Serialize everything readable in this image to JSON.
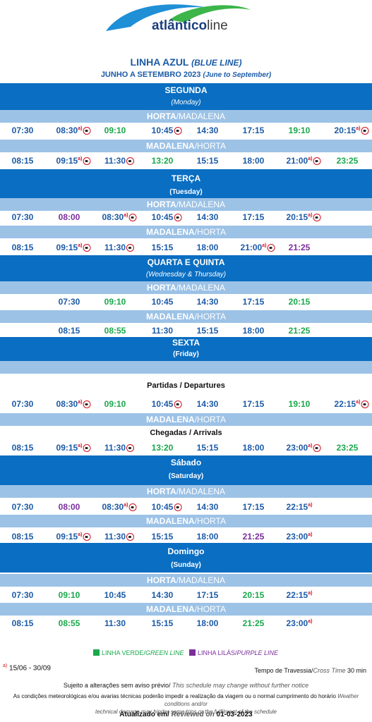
{
  "brand": {
    "name_bold": "atlântico",
    "name_light": "line"
  },
  "header": {
    "line_name": "LINHA AZUL",
    "line_name_en": "(BLUE LINE)",
    "period": "JUNHO A SETEMBRO 2023",
    "period_en": "(June to September)"
  },
  "routes": {
    "hm_a": "HORTA",
    "hm_b": "/MADALENA",
    "mh_a": "MADALENA",
    "mh_b": "/HORTA"
  },
  "days": {
    "monday": {
      "main": "SEGUNDA",
      "sub": "(Monday)"
    },
    "tuesday": {
      "main": "TERÇA",
      "sub": "(Tuesday)"
    },
    "wedthu": {
      "main": "QUARTA E QUINTA",
      "sub": "(Wednesday & Thursday)"
    },
    "friday": {
      "main": "SEXTA",
      "sub": "(Friday)"
    },
    "saturday": {
      "main": "Sábado",
      "sub": "(Saturday)"
    },
    "sunday": {
      "main": "Domingo",
      "sub": "(Sunday)"
    }
  },
  "friday_labels": {
    "departures": "Partidas / Departures",
    "arrivals": "Chegadas / Arrivals"
  },
  "colors": {
    "blue": "#0a6ec2",
    "light_blue": "#9cc2e6",
    "green": "#1aa84b",
    "purple": "#7b2d9c",
    "red": "#d01020"
  },
  "legend": {
    "green_a": "LINHA VERDE/",
    "green_b": "GREEN LINE",
    "purple_a": "LINHA LILÁS/",
    "purple_b": "PURPLE LINE"
  },
  "footer": {
    "season_mark": "a)",
    "season": " 15/06 - 30/09",
    "crossing_a": "Tempo de Travessia/",
    "crossing_b": "Cross Time",
    "crossing_c": " 30 min",
    "subject_a": "Sujeito a alterações sem aviso prévio/",
    "subject_b": " This schedule may change without further notice",
    "weather_a": "As condições meteorológicas e/ou avarias técnicas poderão impedir a realização da viagem ou o normal cumprimento do horário",
    "weather_b": " Weather conditions and/or",
    "weather_c": "technical damage may hinder some trips or the fulfilment of the schedule",
    "updated_a": "Atualizado em/",
    "updated_b": " Reviewed on",
    "updated_c": "  01-03-2023"
  },
  "rows": {
    "mon_hm": [
      {
        "time": "07:30",
        "color": "blue"
      },
      {
        "time": "08:30",
        "color": "blue",
        "mark": "a)",
        "bus": true
      },
      {
        "time": "09:10",
        "color": "green"
      },
      {
        "time": "10:45",
        "color": "blue",
        "bus": true
      },
      {
        "time": "14:30",
        "color": "blue"
      },
      {
        "time": "17:15",
        "color": "blue"
      },
      {
        "time": "19:10",
        "color": "green"
      },
      {
        "time": "20:15",
        "color": "blue",
        "mark": "a)",
        "bus": true
      }
    ],
    "mon_mh": [
      {
        "time": "08:15",
        "color": "blue"
      },
      {
        "time": "09:15",
        "color": "blue",
        "mark": "a)",
        "bus": true
      },
      {
        "time": "11:30",
        "color": "blue",
        "bus": true
      },
      {
        "time": "13:20",
        "color": "green"
      },
      {
        "time": "15:15",
        "color": "blue"
      },
      {
        "time": "18:00",
        "color": "blue"
      },
      {
        "time": "21:00",
        "color": "blue",
        "mark": "a)",
        "bus": true
      },
      {
        "time": "23:25",
        "color": "green"
      }
    ],
    "tue_hm": [
      {
        "time": "07:30",
        "color": "blue"
      },
      {
        "time": "08:00",
        "color": "purple"
      },
      {
        "time": "08:30",
        "color": "blue",
        "mark": "a)",
        "bus": true
      },
      {
        "time": "10:45",
        "color": "blue",
        "bus": true
      },
      {
        "time": "14:30",
        "color": "blue"
      },
      {
        "time": "17:15",
        "color": "blue"
      },
      {
        "time": "20:15",
        "color": "blue",
        "mark": "a)",
        "bus": true
      }
    ],
    "tue_mh": [
      {
        "time": "08:15",
        "color": "blue"
      },
      {
        "time": "09:15",
        "color": "blue",
        "mark": "a)",
        "bus": true
      },
      {
        "time": "11:30",
        "color": "blue",
        "bus": true
      },
      {
        "time": "15:15",
        "color": "blue"
      },
      {
        "time": "18:00",
        "color": "blue"
      },
      {
        "time": "21:00",
        "color": "blue",
        "mark": "a)",
        "bus": true
      },
      {
        "time": "21:25",
        "color": "purple"
      }
    ],
    "wed_hm": [
      {
        "time": "07:30",
        "color": "blue"
      },
      {
        "time": "09:10",
        "color": "green"
      },
      {
        "time": "10:45",
        "color": "blue"
      },
      {
        "time": "14:30",
        "color": "blue"
      },
      {
        "time": "17:15",
        "color": "blue"
      },
      {
        "time": "20:15",
        "color": "green"
      }
    ],
    "wed_mh": [
      {
        "time": "08:15",
        "color": "blue"
      },
      {
        "time": "08:55",
        "color": "green"
      },
      {
        "time": "11:30",
        "color": "blue"
      },
      {
        "time": "15:15",
        "color": "blue"
      },
      {
        "time": "18:00",
        "color": "blue"
      },
      {
        "time": "21:25",
        "color": "green"
      }
    ],
    "fri_hm": [
      {
        "time": "07:30",
        "color": "blue"
      },
      {
        "time": "08:30",
        "color": "blue",
        "mark": "a)",
        "bus": true
      },
      {
        "time": "09:10",
        "color": "green"
      },
      {
        "time": "10:45",
        "color": "blue",
        "bus": true
      },
      {
        "time": "14:30",
        "color": "blue"
      },
      {
        "time": "17:15",
        "color": "blue"
      },
      {
        "time": "19:10",
        "color": "green"
      },
      {
        "time": "22:15",
        "color": "blue",
        "mark": "a)",
        "bus": true
      }
    ],
    "fri_mh": [
      {
        "time": "08:15",
        "color": "blue"
      },
      {
        "time": "09:15",
        "color": "blue",
        "mark": "a)",
        "bus": true
      },
      {
        "time": "11:30",
        "color": "blue",
        "bus": true
      },
      {
        "time": "13:20",
        "color": "green"
      },
      {
        "time": "15:15",
        "color": "blue"
      },
      {
        "time": "18:00",
        "color": "blue"
      },
      {
        "time": "23:00",
        "color": "blue",
        "mark": "a)",
        "bus": true
      },
      {
        "time": "23:25",
        "color": "green"
      }
    ],
    "sat_hm": [
      {
        "time": "07:30",
        "color": "blue"
      },
      {
        "time": "08:00",
        "color": "purple"
      },
      {
        "time": "08:30",
        "color": "blue",
        "mark": "a)",
        "bus": true
      },
      {
        "time": "10:45",
        "color": "blue",
        "bus": true
      },
      {
        "time": "14:30",
        "color": "blue"
      },
      {
        "time": "17:15",
        "color": "blue"
      },
      {
        "time": "22:15",
        "color": "blue",
        "mark": "a)"
      }
    ],
    "sat_mh": [
      {
        "time": "08:15",
        "color": "blue"
      },
      {
        "time": "09:15",
        "color": "blue",
        "mark": "a)",
        "bus": true
      },
      {
        "time": "11:30",
        "color": "blue",
        "bus": true
      },
      {
        "time": "15:15",
        "color": "blue"
      },
      {
        "time": "18:00",
        "color": "blue"
      },
      {
        "time": "21:25",
        "color": "purple"
      },
      {
        "time": "23:00",
        "color": "blue",
        "mark": "a)"
      }
    ],
    "sun_hm": [
      {
        "time": "07:30",
        "color": "blue"
      },
      {
        "time": "09:10",
        "color": "green"
      },
      {
        "time": "10:45",
        "color": "blue"
      },
      {
        "time": "14:30",
        "color": "blue"
      },
      {
        "time": "17:15",
        "color": "blue"
      },
      {
        "time": "20:15",
        "color": "green"
      },
      {
        "time": "22:15",
        "color": "blue",
        "mark": "a)"
      }
    ],
    "sun_mh": [
      {
        "time": "08:15",
        "color": "blue"
      },
      {
        "time": "08:55",
        "color": "green"
      },
      {
        "time": "11:30",
        "color": "blue"
      },
      {
        "time": "15:15",
        "color": "blue"
      },
      {
        "time": "18:00",
        "color": "blue"
      },
      {
        "time": "21:25",
        "color": "green"
      },
      {
        "time": "23:00",
        "color": "blue",
        "mark": "a)"
      }
    ]
  }
}
